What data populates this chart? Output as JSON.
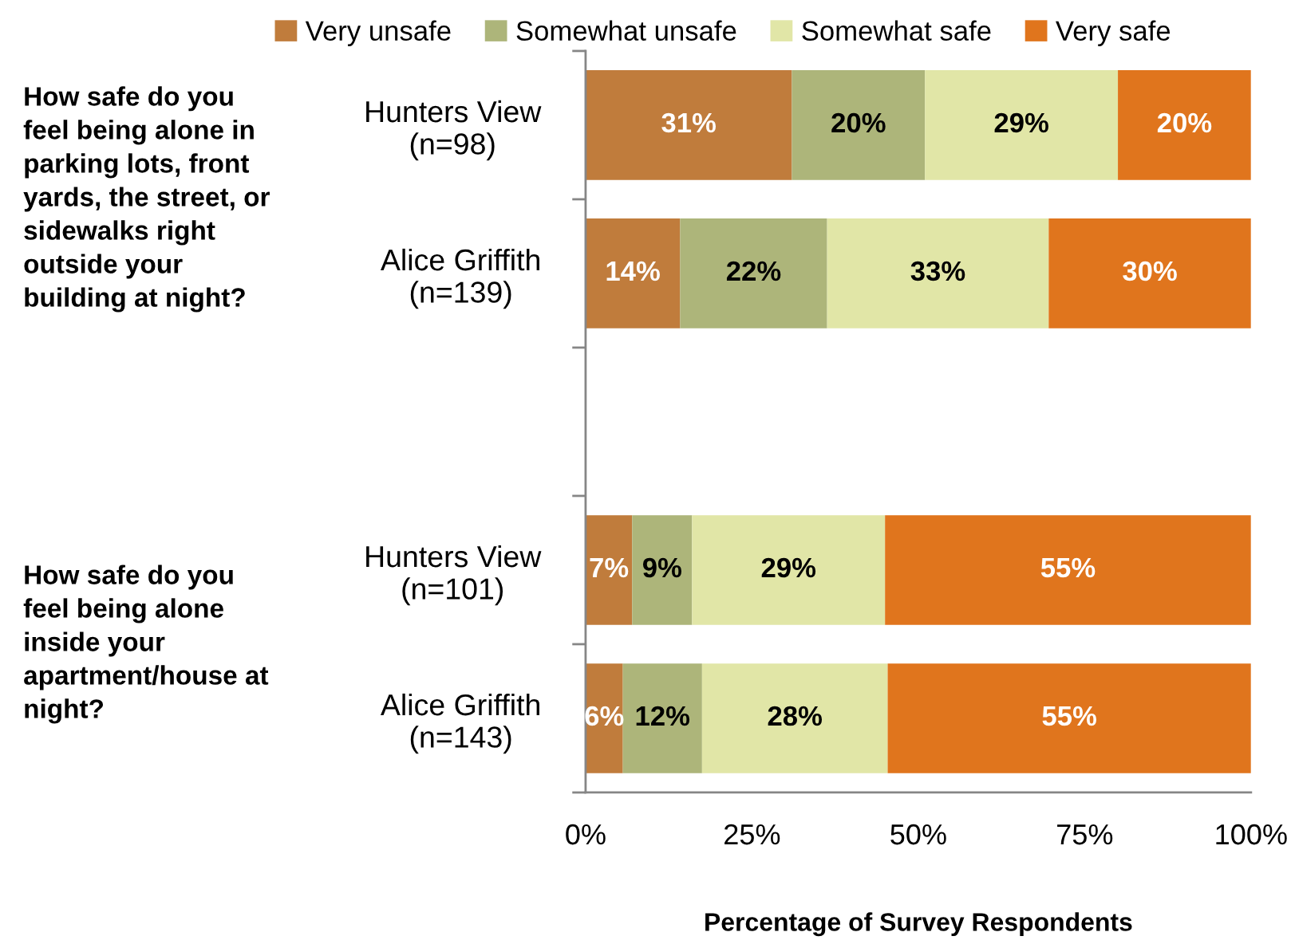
{
  "chart_data": {
    "type": "bar",
    "orientation": "horizontal",
    "stacked": true,
    "categories": [
      "Hunters View\n(n=98)",
      "Alice Griffith\n(n=139)",
      null,
      "Hunters View\n(n=101)",
      "Alice Griffith\n(n=143)"
    ],
    "series": [
      {
        "name": "Very unsafe",
        "color": "#c07c3c",
        "values": [
          31,
          14.2,
          null,
          7,
          5.6
        ],
        "value_labels": [
          "31%",
          "14%",
          null,
          "7%",
          "6%"
        ]
      },
      {
        "name": "Somewhat unsafe",
        "color": "#adb57a",
        "values": [
          20,
          22.1,
          null,
          9,
          11.9
        ],
        "value_labels": [
          "20%",
          "22%",
          null,
          "9%",
          "12%"
        ]
      },
      {
        "name": "Somewhat safe",
        "color": "#e1e6a7",
        "values": [
          29,
          33.3,
          null,
          29,
          27.9
        ],
        "value_labels": [
          "29%",
          "33%",
          null,
          "29%",
          "28%"
        ]
      },
      {
        "name": "Very safe",
        "color": "#e0751d",
        "values": [
          20,
          30.4,
          null,
          55,
          54.6
        ],
        "value_labels": [
          "20%",
          "30%",
          null,
          "55%",
          "55%"
        ]
      }
    ],
    "xlim": [
      0,
      100
    ],
    "xticks": [
      {
        "value": 0,
        "label": "0%"
      },
      {
        "value": 25,
        "label": "25%"
      },
      {
        "value": 50,
        "label": "50%"
      },
      {
        "value": 75,
        "label": "75%"
      },
      {
        "value": 100,
        "label": "100%"
      }
    ],
    "xlabel": "Percentage of Survey Respondents",
    "legend": "top",
    "annotations": [
      "How safe do you\nfeel being alone in\nparking lots, front\nyards, the street, or\nsidewalks right\noutside your\nbuilding at night?",
      "How safe do you\nfeel being alone\ninside your\napartment/house at\nnight?"
    ]
  }
}
